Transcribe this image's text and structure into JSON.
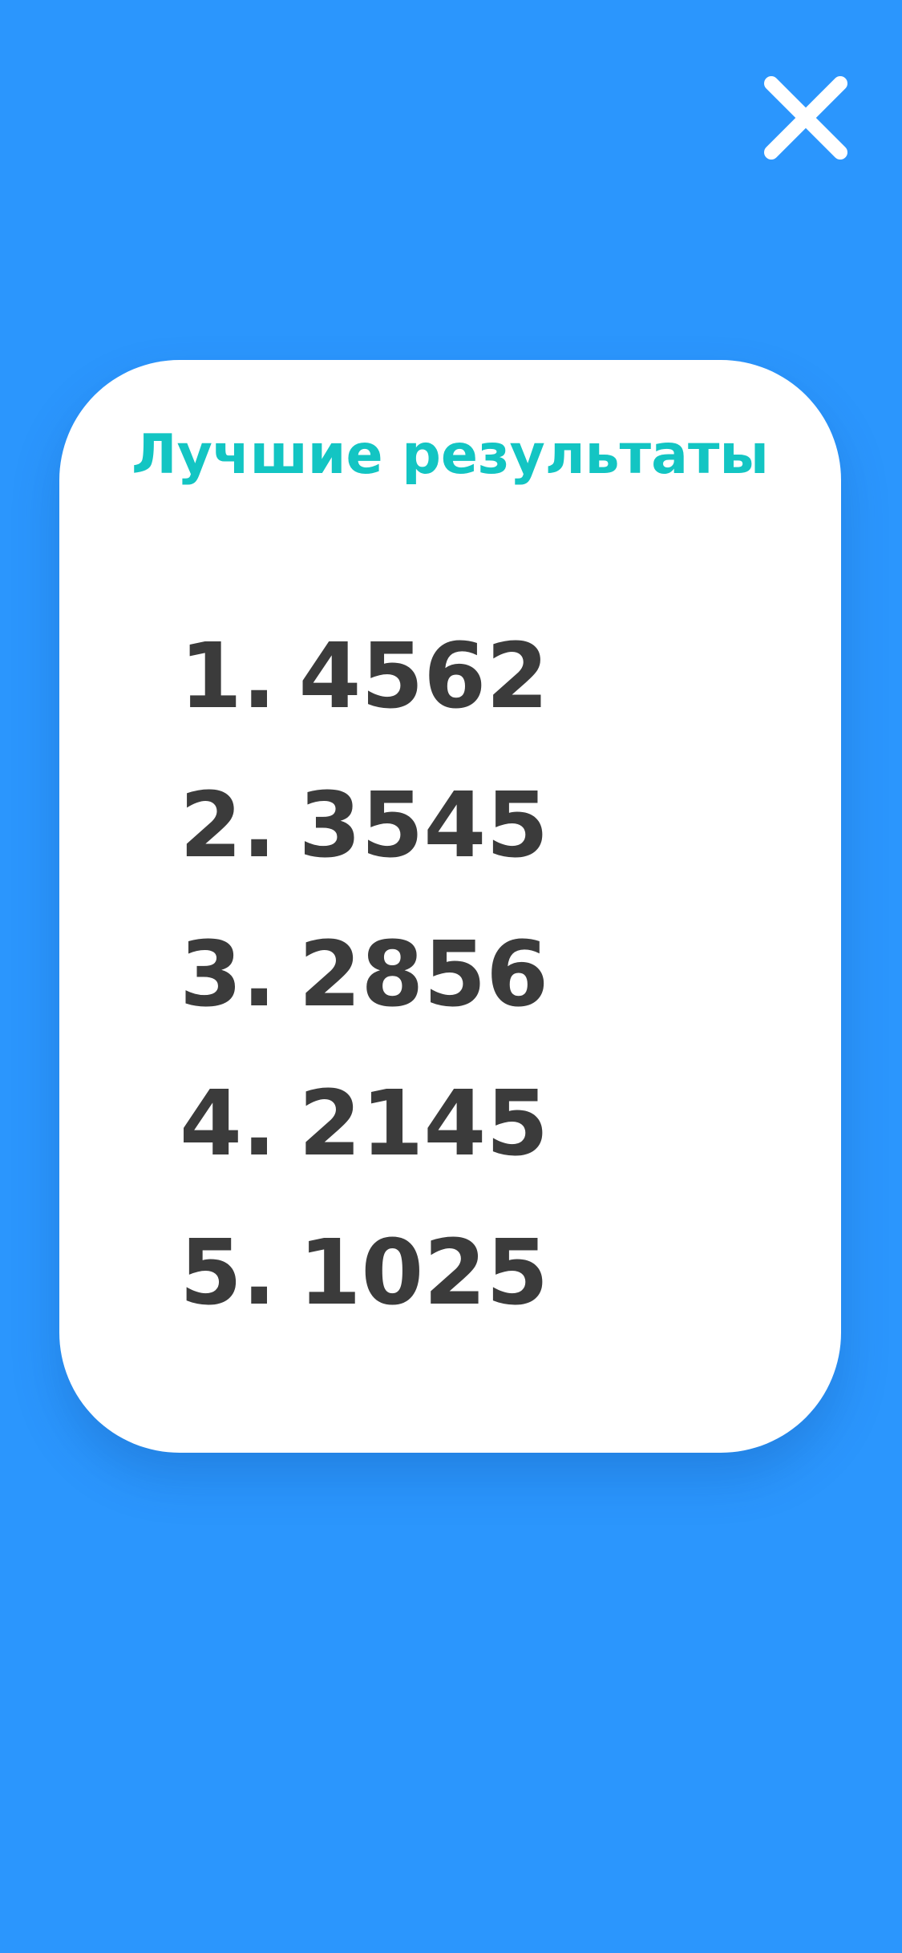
{
  "close_button": {
    "icon": "close-icon",
    "color": "#ffffff"
  },
  "colors": {
    "background": "#2b96fd",
    "card": "#ffffff",
    "title": "#13c5c3",
    "scores": "#3b3b3b"
  },
  "card": {
    "title": "Лучшие результаты",
    "scores": [
      {
        "rank": "1.",
        "value": "4562"
      },
      {
        "rank": "2.",
        "value": "3545"
      },
      {
        "rank": "3.",
        "value": "2856"
      },
      {
        "rank": "4.",
        "value": "2145"
      },
      {
        "rank": "5.",
        "value": "1025"
      }
    ]
  }
}
